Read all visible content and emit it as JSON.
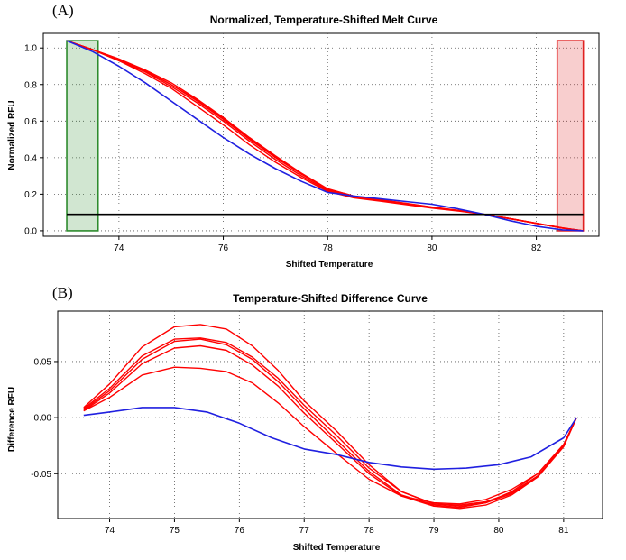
{
  "chart_data": [
    {
      "panel_label": "(A)",
      "type": "line",
      "title": "Normalized, Temperature-Shifted Melt Curve",
      "xlabel": "Shifted Temperature",
      "ylabel": "Normalized RFU",
      "xlim": [
        72.55,
        83.2
      ],
      "ylim": [
        -0.03,
        1.08
      ],
      "xticks": [
        74,
        76,
        78,
        80,
        82
      ],
      "yticks": [
        0.0,
        0.2,
        0.4,
        0.6,
        0.8,
        1.0
      ],
      "xtick_labels": [
        "74",
        "76",
        "78",
        "80",
        "82"
      ],
      "ytick_labels": [
        "0.0",
        "0.2",
        "0.4",
        "0.6",
        "0.8",
        "1.0"
      ],
      "grid": true,
      "regions": [
        {
          "x0": 73.0,
          "x1": 73.6,
          "y0": 0.0,
          "y1": 1.04,
          "color": "#2e8b2e"
        },
        {
          "x0": 82.4,
          "x1": 82.9,
          "y0": 0.0,
          "y1": 1.04,
          "color": "#e02020"
        }
      ],
      "threshold": {
        "x0": 73.0,
        "x1": 82.9,
        "y": 0.09,
        "color": "#000000"
      },
      "series": [
        {
          "color": "#ff0000",
          "x": [
            73.0,
            73.5,
            74.0,
            74.5,
            75.0,
            75.5,
            76.0,
            76.5,
            77.0,
            77.5,
            78.0,
            78.5,
            79.0,
            79.5,
            80.0,
            80.5,
            81.0,
            81.5,
            82.0,
            82.5,
            82.9
          ],
          "y": [
            1.04,
            0.99,
            0.93,
            0.87,
            0.79,
            0.7,
            0.6,
            0.49,
            0.39,
            0.3,
            0.22,
            0.185,
            0.165,
            0.145,
            0.125,
            0.11,
            0.09,
            0.065,
            0.04,
            0.015,
            0.0
          ]
        },
        {
          "color": "#ff0000",
          "x": [
            73.0,
            73.5,
            74.0,
            74.5,
            75.0,
            75.5,
            76.0,
            76.5,
            77.0,
            77.5,
            78.0,
            78.5,
            79.0,
            79.5,
            80.0,
            80.5,
            81.0,
            81.5,
            82.0,
            82.5,
            82.9
          ],
          "y": [
            1.04,
            0.99,
            0.935,
            0.875,
            0.8,
            0.71,
            0.61,
            0.5,
            0.4,
            0.31,
            0.225,
            0.19,
            0.17,
            0.15,
            0.13,
            0.112,
            0.09,
            0.066,
            0.041,
            0.016,
            0.0
          ]
        },
        {
          "color": "#ff0000",
          "x": [
            73.0,
            73.5,
            74.0,
            74.5,
            75.0,
            75.5,
            76.0,
            76.5,
            77.0,
            77.5,
            78.0,
            78.5,
            79.0,
            79.5,
            80.0,
            80.5,
            81.0,
            81.5,
            82.0,
            82.5,
            82.9
          ],
          "y": [
            1.04,
            0.99,
            0.94,
            0.88,
            0.81,
            0.72,
            0.62,
            0.51,
            0.41,
            0.315,
            0.23,
            0.19,
            0.168,
            0.148,
            0.128,
            0.11,
            0.09,
            0.066,
            0.04,
            0.015,
            0.0
          ]
        },
        {
          "color": "#ff0000",
          "x": [
            73.0,
            73.5,
            74.0,
            74.5,
            75.0,
            75.5,
            76.0,
            76.5,
            77.0,
            77.5,
            78.0,
            78.5,
            79.0,
            79.5,
            80.0,
            80.5,
            81.0,
            81.5,
            82.0,
            82.5,
            82.9
          ],
          "y": [
            1.04,
            0.99,
            0.93,
            0.86,
            0.78,
            0.68,
            0.58,
            0.47,
            0.375,
            0.29,
            0.215,
            0.18,
            0.162,
            0.143,
            0.124,
            0.108,
            0.09,
            0.066,
            0.041,
            0.016,
            0.0
          ]
        },
        {
          "color": "#ff0000",
          "x": [
            73.0,
            73.5,
            74.0,
            74.5,
            75.0,
            75.5,
            76.0,
            76.5,
            77.0,
            77.5,
            78.0,
            78.5,
            79.0,
            79.5,
            80.0,
            80.5,
            81.0,
            81.5,
            82.0,
            82.5,
            82.9
          ],
          "y": [
            1.04,
            0.99,
            0.94,
            0.875,
            0.8,
            0.715,
            0.615,
            0.505,
            0.405,
            0.31,
            0.228,
            0.19,
            0.169,
            0.149,
            0.129,
            0.111,
            0.09,
            0.066,
            0.04,
            0.015,
            0.0
          ]
        },
        {
          "color": "#2020e0",
          "x": [
            73.0,
            73.5,
            74.0,
            74.5,
            75.0,
            75.5,
            76.0,
            76.5,
            77.0,
            77.5,
            78.0,
            78.5,
            79.0,
            79.5,
            80.0,
            80.5,
            81.0,
            81.5,
            82.0,
            82.5,
            82.9
          ],
          "y": [
            1.04,
            0.98,
            0.9,
            0.81,
            0.71,
            0.61,
            0.51,
            0.42,
            0.34,
            0.27,
            0.21,
            0.19,
            0.175,
            0.16,
            0.145,
            0.12,
            0.09,
            0.055,
            0.025,
            0.005,
            0.0
          ]
        }
      ]
    },
    {
      "panel_label": "(B)",
      "type": "line",
      "title": "Temperature-Shifted Difference Curve",
      "xlabel": "Shifted Temperature",
      "ylabel": "Difference RFU",
      "xlim": [
        73.2,
        81.6
      ],
      "ylim": [
        -0.09,
        0.095
      ],
      "xticks": [
        74,
        75,
        76,
        77,
        78,
        79,
        80,
        81
      ],
      "yticks": [
        -0.05,
        0.0,
        0.05
      ],
      "xtick_labels": [
        "74",
        "75",
        "76",
        "77",
        "78",
        "79",
        "80",
        "81"
      ],
      "ytick_labels": [
        "-0.05",
        "0.00",
        "0.05"
      ],
      "grid": true,
      "series": [
        {
          "color": "#ff0000",
          "x": [
            73.6,
            74.0,
            74.5,
            75.0,
            75.4,
            75.8,
            76.2,
            76.6,
            77.0,
            77.5,
            78.0,
            78.5,
            79.0,
            79.4,
            79.8,
            80.2,
            80.6,
            81.0,
            81.2
          ],
          "y": [
            0.009,
            0.03,
            0.063,
            0.081,
            0.083,
            0.079,
            0.064,
            0.042,
            0.015,
            -0.012,
            -0.042,
            -0.066,
            -0.077,
            -0.079,
            -0.076,
            -0.068,
            -0.052,
            -0.025,
            0.0
          ]
        },
        {
          "color": "#ff0000",
          "x": [
            73.6,
            74.0,
            74.5,
            75.0,
            75.4,
            75.8,
            76.2,
            76.6,
            77.0,
            77.5,
            78.0,
            78.5,
            79.0,
            79.4,
            79.8,
            80.2,
            80.6,
            81.0,
            81.2
          ],
          "y": [
            0.008,
            0.026,
            0.055,
            0.07,
            0.071,
            0.067,
            0.054,
            0.035,
            0.011,
            -0.016,
            -0.045,
            -0.066,
            -0.077,
            -0.078,
            -0.075,
            -0.067,
            -0.052,
            -0.025,
            0.0
          ]
        },
        {
          "color": "#ff0000",
          "x": [
            73.6,
            74.0,
            74.5,
            75.0,
            75.4,
            75.8,
            76.2,
            76.6,
            77.0,
            77.5,
            78.0,
            78.5,
            79.0,
            79.4,
            79.8,
            80.2,
            80.6,
            81.0,
            81.2
          ],
          "y": [
            0.007,
            0.024,
            0.052,
            0.068,
            0.07,
            0.065,
            0.052,
            0.032,
            0.008,
            -0.02,
            -0.048,
            -0.069,
            -0.078,
            -0.08,
            -0.076,
            -0.066,
            -0.05,
            -0.024,
            0.0
          ]
        },
        {
          "color": "#ff0000",
          "x": [
            73.6,
            74.0,
            74.5,
            75.0,
            75.4,
            75.8,
            76.2,
            76.6,
            77.0,
            77.5,
            78.0,
            78.5,
            79.0,
            79.4,
            79.8,
            80.2,
            80.6,
            81.0,
            81.2
          ],
          "y": [
            0.006,
            0.022,
            0.048,
            0.062,
            0.064,
            0.06,
            0.047,
            0.028,
            0.004,
            -0.023,
            -0.05,
            -0.07,
            -0.079,
            -0.081,
            -0.078,
            -0.069,
            -0.053,
            -0.026,
            0.0
          ]
        },
        {
          "color": "#ff0000",
          "x": [
            73.6,
            74.0,
            74.5,
            75.0,
            75.4,
            75.8,
            76.2,
            76.6,
            77.0,
            77.5,
            78.0,
            78.5,
            79.0,
            79.4,
            79.8,
            80.2,
            80.6,
            81.0,
            81.2
          ],
          "y": [
            0.006,
            0.018,
            0.038,
            0.045,
            0.044,
            0.041,
            0.031,
            0.013,
            -0.008,
            -0.032,
            -0.055,
            -0.07,
            -0.076,
            -0.077,
            -0.073,
            -0.064,
            -0.05,
            -0.024,
            0.0
          ]
        },
        {
          "color": "#2020e0",
          "x": [
            73.6,
            74.0,
            74.5,
            75.0,
            75.5,
            76.0,
            76.5,
            77.0,
            77.5,
            78.0,
            78.5,
            79.0,
            79.5,
            80.0,
            80.5,
            81.0,
            81.2
          ],
          "y": [
            0.002,
            0.005,
            0.009,
            0.009,
            0.005,
            -0.005,
            -0.018,
            -0.028,
            -0.033,
            -0.04,
            -0.044,
            -0.046,
            -0.045,
            -0.042,
            -0.035,
            -0.018,
            0.0
          ]
        }
      ]
    }
  ]
}
